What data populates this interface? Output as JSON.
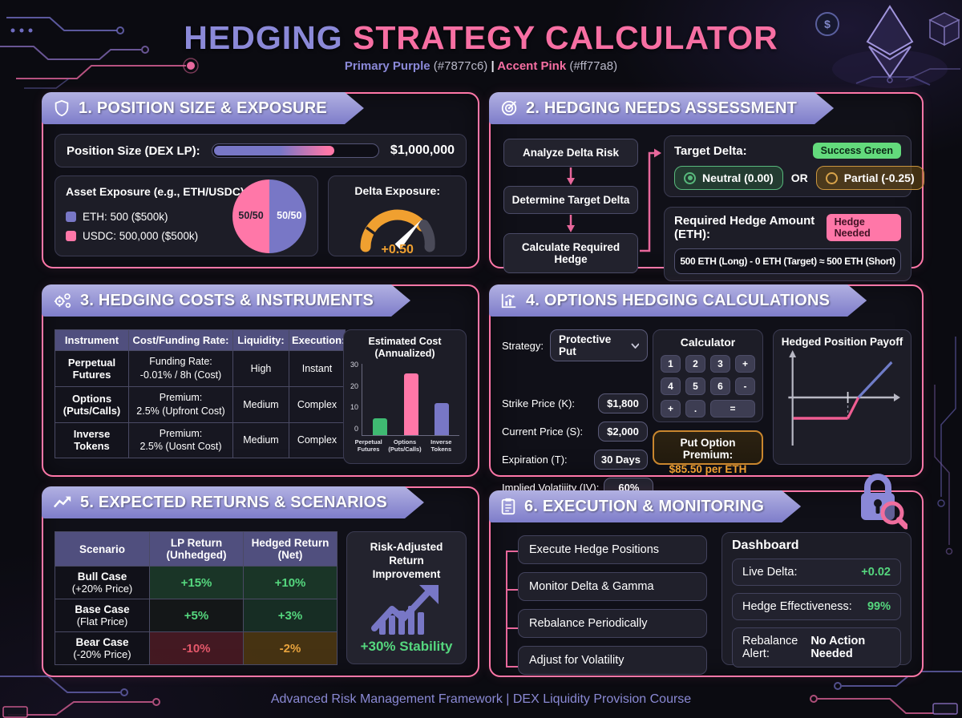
{
  "page": {
    "title_part1": "HEDGING ",
    "title_part2": "STRATEGY CALCULATOR",
    "subtitle_purple_label": "Primary Purple",
    "subtitle_purple_hex": " (#7877c6) ",
    "subtitle_divider": "| ",
    "subtitle_pink_label": "Accent Pink",
    "subtitle_pink_hex": " (#ff77a8)",
    "footer": "Advanced Risk Management Framework | DEX Liquidity Provision Course"
  },
  "colors": {
    "primary_purple": "#7877c6",
    "accent_pink": "#ff77a8",
    "success_green": "#55d77e",
    "warning_amber": "#e8a33d",
    "danger_red": "#e4586a"
  },
  "panel1": {
    "title": "1. POSITION SIZE & EXPOSURE",
    "position_row": {
      "label": "Position Size (DEX LP):",
      "value": "$1,000,000",
      "fill_pct": 74
    },
    "asset_box": {
      "title": "Asset Exposure (e.g., ETH/USDC):",
      "legend": [
        {
          "label": "ETH: 500 ($500k)",
          "color": "#7877c6"
        },
        {
          "label": "USDC: 500,000 ($500k)",
          "color": "#ff77a8"
        }
      ],
      "pie_left": "50/50",
      "pie_right": "50/50"
    },
    "delta_box": {
      "title": "Delta Exposure:",
      "value": "+0.50"
    }
  },
  "panel2": {
    "title": "2. HEDGING NEEDS ASSESSMENT",
    "flow": [
      "Analyze Delta Risk",
      "Determine Target Delta",
      "Calculate Required Hedge"
    ],
    "target": {
      "label": "Target Delta:",
      "badge": "Success Green",
      "neutral": "Neutral (0.00)",
      "or": "OR",
      "partial": "Partial (-0.25)"
    },
    "hedge": {
      "label": "Required Hedge Amount (ETH):",
      "badge": "Hedge Needed",
      "formula": "500 ETH (Long) - 0 ETH (Target) ≈ 500 ETH (Short)"
    }
  },
  "panel3": {
    "title": "3. HEDGING COSTS & INSTRUMENTS",
    "headers": [
      "Instrument",
      "Cost/Funding Rate:",
      "Liquidity:",
      "Execution:"
    ],
    "rows": [
      {
        "instrument": "Perpetual Futures",
        "cost1": "Funding Rate:",
        "cost2": "-0.01% / 8h (Cost)",
        "liquidity": "High",
        "execution": "Instant"
      },
      {
        "instrument": "Options (Puts/Calls)",
        "cost1": "Premium:",
        "cost2": "2.5% (Upfront Cost)",
        "liquidity": "Medium",
        "execution": "Complex"
      },
      {
        "instrument": "Inverse Tokens",
        "cost1": "Premium:",
        "cost2": "2.5% (Uosnt Cost)",
        "liquidity": "Medium",
        "execution": "Complex"
      }
    ]
  },
  "chart_data": [
    {
      "type": "bar",
      "title": "Estimated Cost (Annualized)",
      "categories": [
        "Perpetual Futures",
        "Options (Puts/Calls)",
        "Inverse Tokens"
      ],
      "values": [
        7,
        26,
        13.5
      ],
      "colors": [
        "#3fba72",
        "#ff77a8",
        "#7877c6"
      ],
      "xlabel": "",
      "ylabel": "",
      "ylim": [
        0,
        30
      ],
      "yticks": [
        0,
        10,
        20,
        30
      ],
      "grid": false,
      "legend": "none"
    },
    {
      "type": "pie",
      "title": "Asset Exposure (e.g., ETH/USDC)",
      "categories": [
        "ETH",
        "USDC"
      ],
      "values": [
        50,
        50
      ],
      "colors": [
        "#7877c6",
        "#ff77a8"
      ],
      "labels": [
        "50/50",
        "50/50"
      ]
    },
    {
      "type": "gauge",
      "title": "Delta Exposure",
      "value": 0.5,
      "display": "+0.50",
      "fill_fraction": 0.75,
      "colors": {
        "fill": "#f0a030",
        "rest": "#4a4a58"
      }
    },
    {
      "type": "line",
      "title": "Hedged Position Payoff",
      "description": "flat loss floor (pink) left of strike, rising payoff (purple-blue) right of strike crossing zero axis",
      "colors": {
        "floor": "#ef5d92",
        "upside": "#6f7cc8"
      }
    }
  ],
  "panel4": {
    "title": "4. OPTIONS HEDGING CALCULATIONS",
    "strategy_label": "Strategy:",
    "strategy_value": "Protective Put",
    "fields": [
      {
        "label": "Strike Price (K):",
        "value": "$1,800"
      },
      {
        "label": "Current Price (S):",
        "value": "$2,000"
      },
      {
        "label": "Expiration (T):",
        "value": "30 Days"
      },
      {
        "label": "Implied Volatiiity (IV):",
        "value": "60%"
      }
    ],
    "calculator": {
      "title": "Calculator",
      "keys": [
        "1",
        "2",
        "3",
        "+",
        "4",
        "5",
        "6",
        "-",
        "+",
        ".",
        "="
      ]
    },
    "premium": {
      "label": "Put Option Premium:",
      "value": "$85.50 per ETH"
    },
    "payoff_title": "Hedged Position Payoff"
  },
  "panel5": {
    "title": "5. EXPECTED RETURNS & SCENARIOS",
    "headers": [
      "Scenario",
      "LP Return (Unhedged)",
      "Hedged Return (Net)"
    ],
    "rows": [
      {
        "name": "Bull Case",
        "sub": "(+20% Price)",
        "lp": "+15%",
        "hedged": "+10%"
      },
      {
        "name": "Base Case",
        "sub": "(Flat Price)",
        "lp": "+5%",
        "hedged": "+3%"
      },
      {
        "name": "Bear Case",
        "sub": "(-20% Price)",
        "lp": "-10%",
        "hedged": "-2%"
      }
    ],
    "improvement": {
      "title": "Risk-Adjusted Return Improvement",
      "value": "+30% Stability"
    }
  },
  "panel6": {
    "title": "6. EXECUTION & MONITORING",
    "steps": [
      "Execute Hedge Positions",
      "Monitor Delta & Gamma",
      "Rebalance Periodically",
      "Adjust for Volatility"
    ],
    "dashboard": {
      "title": "Dashboard",
      "rows": [
        {
          "label": "Live Delta:",
          "value": "+0.02"
        },
        {
          "label": "Hedge Effectiveness:",
          "value": "99%"
        },
        {
          "label": "Rebalance Alert:",
          "value": "No Action Needed"
        }
      ]
    }
  }
}
